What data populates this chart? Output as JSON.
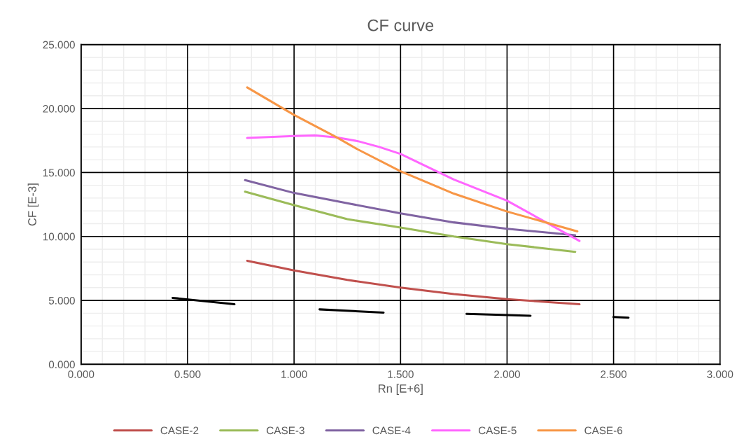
{
  "chart_data": {
    "type": "line",
    "title": "CF curve",
    "xlabel": "Rn [E+6]",
    "ylabel": "CF [E-3]",
    "xlim": [
      0,
      3
    ],
    "ylim": [
      0,
      25
    ],
    "xticks": [
      {
        "value": 0,
        "label": "0.000"
      },
      {
        "value": 0.5,
        "label": "0.500"
      },
      {
        "value": 1,
        "label": "1.000"
      },
      {
        "value": 1.5,
        "label": "1.500"
      },
      {
        "value": 2,
        "label": "2.000"
      },
      {
        "value": 2.5,
        "label": "2.500"
      },
      {
        "value": 3,
        "label": "3.000"
      }
    ],
    "yticks": [
      {
        "value": 0,
        "label": "0.000"
      },
      {
        "value": 5,
        "label": "5.000"
      },
      {
        "value": 10,
        "label": "10.000"
      },
      {
        "value": 15,
        "label": "15.000"
      },
      {
        "value": 20,
        "label": "20.000"
      },
      {
        "value": 25,
        "label": "25.000"
      }
    ],
    "grid": true,
    "legend": "bottom",
    "marker": "none",
    "line_style": "solid",
    "series": [
      {
        "name": "CASE-2",
        "color": "#c0504d",
        "x": [
          0.78,
          1.0,
          1.25,
          1.5,
          1.75,
          2.0,
          2.34
        ],
        "values": [
          8.1,
          7.35,
          6.6,
          6.0,
          5.5,
          5.1,
          4.7
        ]
      },
      {
        "name": "CASE-3",
        "color": "#9bbb59",
        "x": [
          0.77,
          1.0,
          1.25,
          1.5,
          1.75,
          2.0,
          2.32
        ],
        "values": [
          13.5,
          12.45,
          11.35,
          10.7,
          10.0,
          9.4,
          8.8
        ]
      },
      {
        "name": "CASE-4",
        "color": "#8064a2",
        "x": [
          0.77,
          1.0,
          1.25,
          1.5,
          1.75,
          2.0,
          2.32
        ],
        "values": [
          14.4,
          13.4,
          12.6,
          11.8,
          11.1,
          10.6,
          10.1
        ]
      },
      {
        "name": "CASE-5",
        "color": "#ff66ff",
        "x": [
          0.78,
          1.0,
          1.1,
          1.2,
          1.3,
          1.4,
          1.5,
          1.75,
          2.0,
          2.34
        ],
        "values": [
          17.7,
          17.85,
          17.9,
          17.75,
          17.45,
          17.0,
          16.45,
          14.45,
          12.8,
          9.65
        ]
      },
      {
        "name": "CASE-6",
        "color": "#f79646",
        "x": [
          0.78,
          1.0,
          1.2,
          1.3,
          1.5,
          1.75,
          2.0,
          2.33
        ],
        "values": [
          21.65,
          19.5,
          17.75,
          16.8,
          15.1,
          13.35,
          11.95,
          10.4
        ]
      },
      {
        "color": "#000000",
        "x": [
          0.43,
          0.72
        ],
        "values": [
          5.2,
          4.7
        ]
      },
      {
        "color": "#000000",
        "x": [
          1.12,
          1.42
        ],
        "values": [
          4.3,
          4.05
        ]
      },
      {
        "color": "#000000",
        "x": [
          1.81,
          2.11
        ],
        "values": [
          3.95,
          3.8
        ]
      },
      {
        "color": "#000000",
        "x": [
          2.5,
          2.57
        ],
        "values": [
          3.7,
          3.65
        ]
      }
    ]
  }
}
